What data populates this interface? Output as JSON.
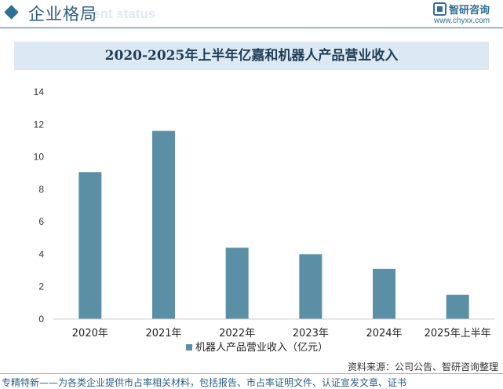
{
  "header": {
    "section_title": "企业格局",
    "ghost_text": "ent status",
    "logo_name": "智研咨询",
    "logo_url": "www.chyxx.com"
  },
  "chart_data": {
    "type": "bar",
    "title": "2020-2025年上半年亿嘉和机器人产品营业收入",
    "categories": [
      "2020年",
      "2021年",
      "2022年",
      "2023年",
      "2024年",
      "2025年上半年"
    ],
    "series": [
      {
        "name": "机器人产品营业收入（亿元）",
        "values": [
          9.05,
          11.6,
          4.4,
          4.0,
          3.1,
          1.5
        ]
      }
    ],
    "ylim": [
      0,
      14
    ],
    "yticks": [
      0,
      2,
      4,
      6,
      8,
      10,
      12,
      14
    ],
    "grid": false,
    "legend": "bottom-center",
    "bar_color": "#5b8fa6"
  },
  "footer": {
    "source": "资料来源：公司公告、智研咨询整理",
    "slogan": "专精特新——为各类企业提供市占率相关材料，包括报告、市占率证明文件、认证宣发文章、证书"
  }
}
